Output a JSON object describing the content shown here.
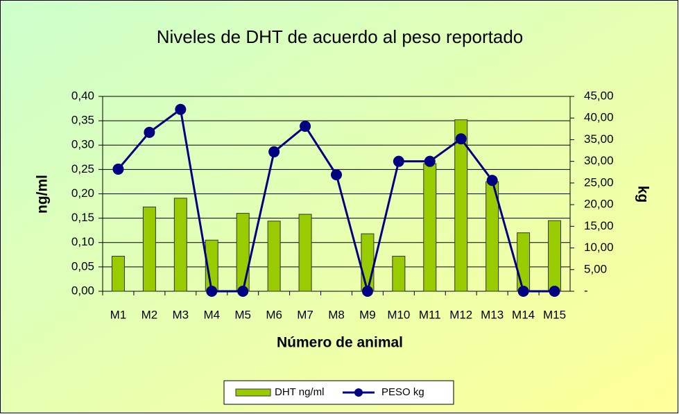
{
  "chart_data": {
    "type": "bar_line",
    "title": "Niveles de DHT de acuerdo al peso reportado",
    "x_label": "Número de animal",
    "y_label": "ng/ml",
    "y2_label": "kg",
    "categories": [
      "M1",
      "M2",
      "M3",
      "M4",
      "M5",
      "M6",
      "M7",
      "M8",
      "M9",
      "M10",
      "M11",
      "M12",
      "M13",
      "M14",
      "M15"
    ],
    "series": [
      {
        "name": "DHT ng/ml",
        "type": "bar",
        "color": "#99cc00",
        "values": [
          0.072,
          0.173,
          0.191,
          0.105,
          0.16,
          0.144,
          0.158,
          0,
          0.118,
          0.072,
          0.262,
          0.352,
          0.225,
          0.12,
          0.145
        ]
      },
      {
        "name": "PESO kg",
        "type": "line",
        "axis": "y2",
        "color": "#000080",
        "values": [
          28.2,
          36.7,
          42.0,
          0,
          0,
          32.2,
          38.1,
          26.9,
          0,
          30.0,
          30.0,
          35.2,
          25.6,
          0,
          0
        ]
      }
    ],
    "ylim": [
      0,
      0.4
    ],
    "yticks": [
      {
        "value": 0,
        "label": "0,00"
      },
      {
        "value": 0.05,
        "label": "0,05"
      },
      {
        "value": 0.1,
        "label": "0,10"
      },
      {
        "value": 0.15,
        "label": "0,15"
      },
      {
        "value": 0.2,
        "label": "0,20"
      },
      {
        "value": 0.25,
        "label": "0,25"
      },
      {
        "value": 0.3,
        "label": "0,30"
      },
      {
        "value": 0.35,
        "label": "0,35"
      },
      {
        "value": 0.4,
        "label": "0,40"
      }
    ],
    "y2lim": [
      0,
      45
    ],
    "y2ticks": [
      {
        "value": 0,
        "label": "-"
      },
      {
        "value": 5,
        "label": "5,00"
      },
      {
        "value": 10,
        "label": "10,00"
      },
      {
        "value": 15,
        "label": "15,00"
      },
      {
        "value": 20,
        "label": "20,00"
      },
      {
        "value": 25,
        "label": "25,00"
      },
      {
        "value": 30,
        "label": "30,00"
      },
      {
        "value": 35,
        "label": "35,00"
      },
      {
        "value": 40,
        "label": "40,00"
      },
      {
        "value": 45,
        "label": "45,00"
      }
    ],
    "grid": true,
    "legend": "bottom"
  }
}
